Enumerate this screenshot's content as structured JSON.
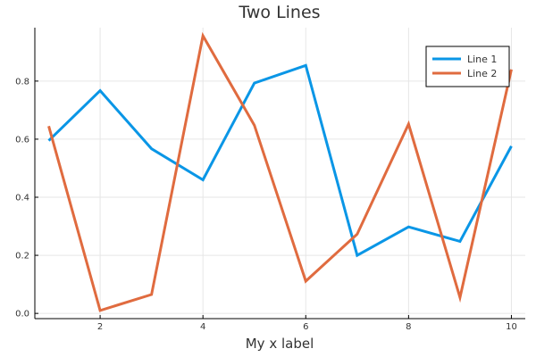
{
  "chart_data": {
    "type": "line",
    "title": "Two Lines",
    "xlabel": "My x label",
    "ylabel": "",
    "x": [
      1,
      2,
      3,
      4,
      5,
      6,
      7,
      8,
      9,
      10
    ],
    "series": [
      {
        "name": "Line 1",
        "color": "#0a96e6",
        "values": [
          0.595,
          0.767,
          0.567,
          0.46,
          0.793,
          0.854,
          0.2,
          0.298,
          0.248,
          0.576
        ]
      },
      {
        "name": "Line 2",
        "color": "#e06b3f",
        "values": [
          0.645,
          0.01,
          0.065,
          0.956,
          0.648,
          0.111,
          0.273,
          0.652,
          0.055,
          0.84
        ]
      }
    ],
    "xlim": [
      0.73,
      10.27
    ],
    "ylim": [
      -0.018,
      0.984
    ],
    "xticks": [
      2,
      4,
      6,
      8,
      10
    ],
    "xtick_labels": [
      "2",
      "4",
      "6",
      "8",
      "10"
    ],
    "yticks": [
      0.0,
      0.2,
      0.4,
      0.6,
      0.8
    ],
    "ytick_labels": [
      "0.0",
      "0.2",
      "0.4",
      "0.6",
      "0.8"
    ],
    "grid": true,
    "legend_position": "top-right"
  }
}
